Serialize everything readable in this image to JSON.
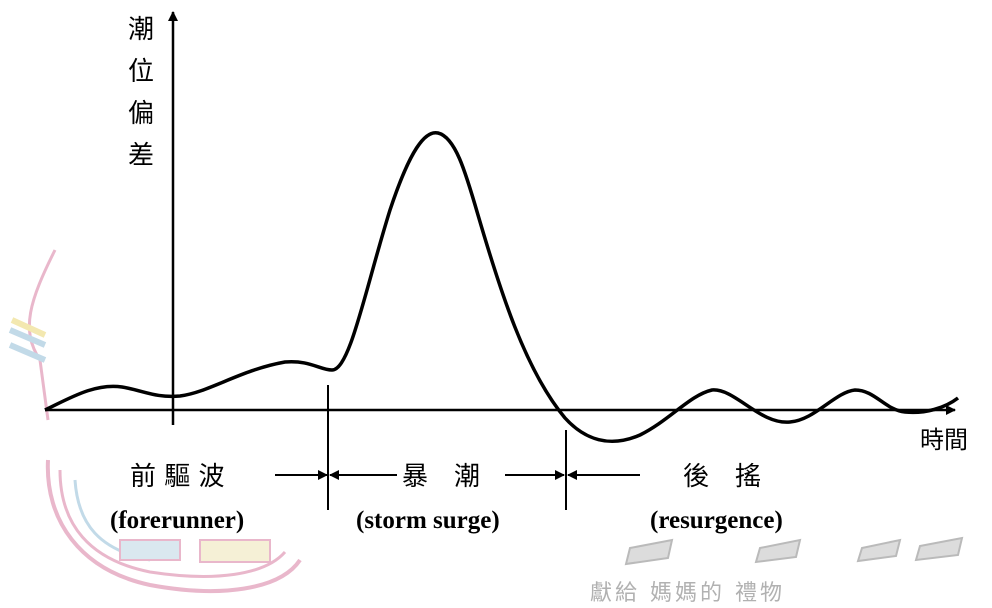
{
  "y_axis_label": "潮位偏差",
  "x_axis_label": "時間",
  "phases": [
    {
      "key": "forerunner",
      "zh": "前 驅 波",
      "en": "(forerunner)"
    },
    {
      "key": "storm-surge",
      "zh": "暴　潮",
      "en": "(storm surge)"
    },
    {
      "key": "resurgence",
      "zh": "後　搖",
      "en": "(resurgence)"
    }
  ],
  "background_caption": "獻給 媽媽的 禮物",
  "colors": {
    "line": "#000000",
    "watermark_pink": "#e7b0c6",
    "watermark_blue": "#bcd6e6",
    "watermark_yellow": "#f2e6a8",
    "watermark_gray": "#b3b3b3"
  }
}
